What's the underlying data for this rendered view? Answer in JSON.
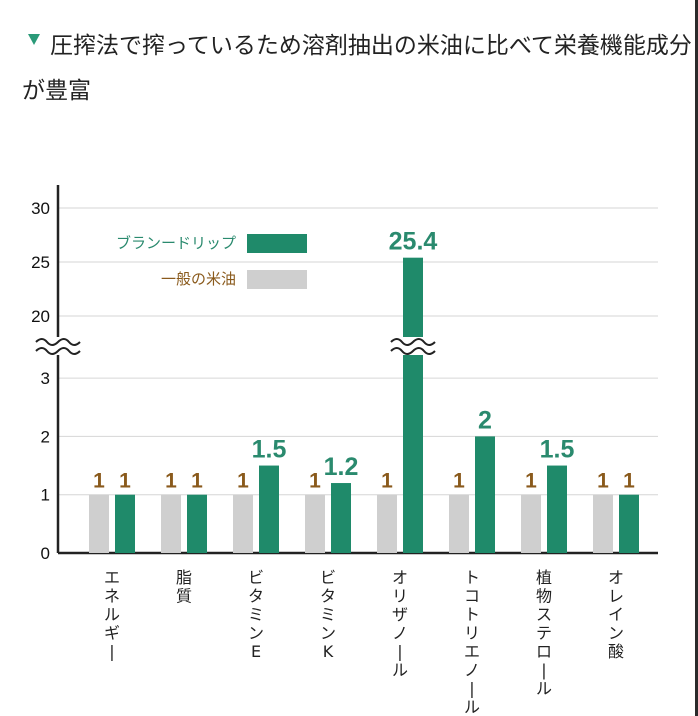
{
  "title_text": "圧搾法で搾っているため溶剤抽出の米油に比べて栄養機能成分が豊富",
  "colors": {
    "brand": "#1f8a6a",
    "general": "#cfcfcf",
    "brand_label": "#2a8a6e",
    "general_label": "#8a5a1c"
  },
  "chart_data": {
    "type": "bar",
    "categories": [
      "エネルギー",
      "脂質",
      "ビタミンE",
      "ビタミンK",
      "オリザノール",
      "トコトリエノール",
      "植物ステロール",
      "オレイン酸"
    ],
    "series": [
      {
        "name": "一般の米油",
        "values": [
          1,
          1,
          1,
          1,
          1,
          1,
          1,
          1
        ],
        "labels": [
          "1",
          "1",
          "1",
          "1",
          "1",
          "1",
          "1",
          "1"
        ]
      },
      {
        "name": "ブランードリップ",
        "values": [
          1,
          1,
          1.5,
          1.2,
          25.4,
          2,
          1.5,
          1
        ],
        "labels": [
          "1",
          "1",
          "1.5",
          "1.2",
          "25.4",
          "2",
          "1.5",
          "1"
        ]
      }
    ],
    "yticks_lower": [
      "0",
      "1",
      "2",
      "3"
    ],
    "yticks_upper": [
      "20",
      "25",
      "30"
    ],
    "axis_break": "3–20",
    "ylim": [
      0,
      30
    ],
    "grid": true,
    "legend_placement": "top-left"
  }
}
